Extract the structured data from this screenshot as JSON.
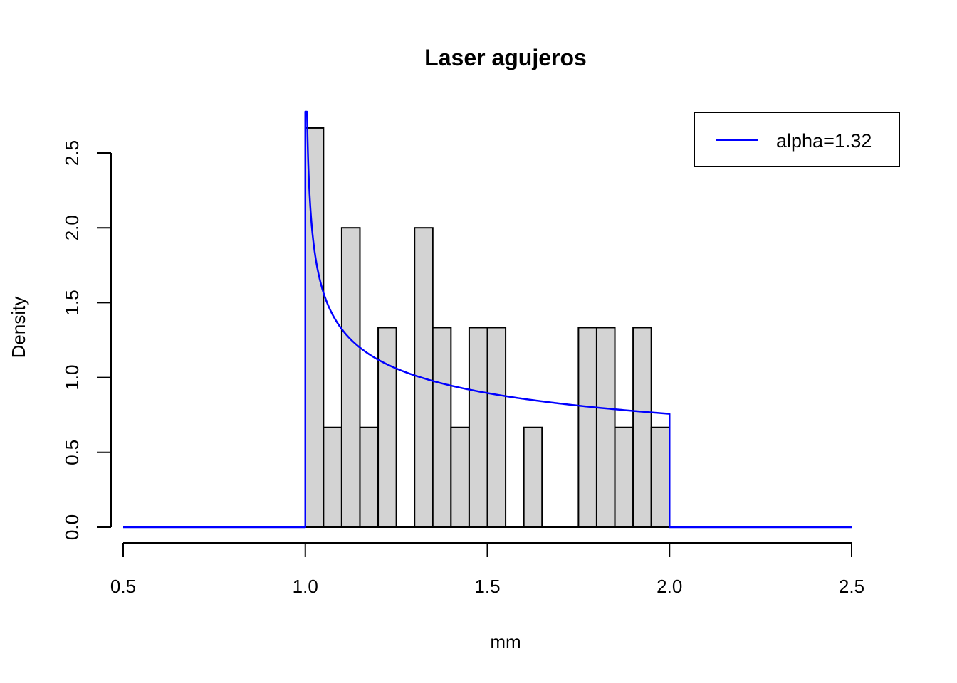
{
  "chart_data": {
    "type": "bar",
    "title": "Laser agujeros",
    "xlabel": "mm",
    "ylabel": "Density",
    "xlim": [
      0.5,
      2.5
    ],
    "ylim": [
      0,
      2.5
    ],
    "x_ticks": [
      "0.5",
      "1.0",
      "1.5",
      "2.0",
      "2.5"
    ],
    "y_ticks": [
      "0.0",
      "0.5",
      "1.0",
      "1.5",
      "2.0",
      "2.5"
    ],
    "grid": false,
    "legend_position": "top-right",
    "histogram": {
      "bin_width": 0.05,
      "bins": [
        {
          "start": 1.0,
          "end": 1.05,
          "density": 2.6667
        },
        {
          "start": 1.05,
          "end": 1.1,
          "density": 0.6667
        },
        {
          "start": 1.1,
          "end": 1.15,
          "density": 2.0
        },
        {
          "start": 1.15,
          "end": 1.2,
          "density": 0.6667
        },
        {
          "start": 1.2,
          "end": 1.25,
          "density": 1.3333
        },
        {
          "start": 1.25,
          "end": 1.3,
          "density": 0
        },
        {
          "start": 1.3,
          "end": 1.35,
          "density": 2.0
        },
        {
          "start": 1.35,
          "end": 1.4,
          "density": 1.3333
        },
        {
          "start": 1.4,
          "end": 1.45,
          "density": 0.6667
        },
        {
          "start": 1.45,
          "end": 1.5,
          "density": 1.3333
        },
        {
          "start": 1.5,
          "end": 1.55,
          "density": 1.3333
        },
        {
          "start": 1.55,
          "end": 1.6,
          "density": 0
        },
        {
          "start": 1.6,
          "end": 1.65,
          "density": 0.6667
        },
        {
          "start": 1.65,
          "end": 1.7,
          "density": 0
        },
        {
          "start": 1.7,
          "end": 1.75,
          "density": 0
        },
        {
          "start": 1.75,
          "end": 1.8,
          "density": 1.3333
        },
        {
          "start": 1.8,
          "end": 1.85,
          "density": 1.3333
        },
        {
          "start": 1.85,
          "end": 1.9,
          "density": 0.6667
        },
        {
          "start": 1.9,
          "end": 1.95,
          "density": 1.3333
        },
        {
          "start": 1.95,
          "end": 2.0,
          "density": 0.6667
        }
      ],
      "fill_color": "#d3d3d3",
      "border_color": "#000000"
    },
    "series": [
      {
        "name": "alpha=1.32",
        "type": "line",
        "color": "#0000ff",
        "support": [
          1.0,
          2.0
        ],
        "alpha": 1.32,
        "range": [
          0.5,
          2.5
        ]
      }
    ]
  }
}
